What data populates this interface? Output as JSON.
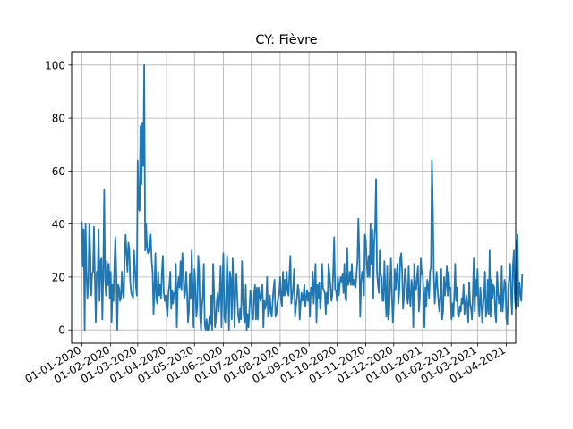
{
  "chart_data": {
    "type": "line",
    "title": "CY: Fièvre",
    "xlabel": "",
    "ylabel": "",
    "grid": true,
    "color": "#1f77b4",
    "x_tick_labels": [
      "01-01-2020",
      "01-02-2020",
      "01-03-2020",
      "01-04-2020",
      "01-05-2020",
      "01-06-2020",
      "01-07-2020",
      "01-08-2020",
      "01-09-2020",
      "01-10-2020",
      "01-11-2020",
      "01-12-2020",
      "01-01-2021",
      "01-02-2021",
      "01-03-2021",
      "01-04-2021"
    ],
    "y_ticks": [
      0,
      20,
      40,
      60,
      80,
      100
    ],
    "xlim": [
      "2019-12-21",
      "2021-04-11"
    ],
    "ylim": [
      -5,
      105
    ],
    "series": [
      {
        "x_start": "2020-01-01",
        "frequency": "daily",
        "values": [
          41,
          24,
          38,
          0,
          40,
          22,
          12,
          18,
          40,
          30,
          13,
          21,
          22,
          39,
          19,
          3,
          22,
          20,
          38,
          11,
          26,
          27,
          4,
          22,
          53,
          19,
          13,
          26,
          17,
          25,
          12,
          22,
          3,
          17,
          11,
          25,
          35,
          22,
          0,
          17,
          16,
          11,
          12,
          22,
          14,
          12,
          27,
          36,
          29,
          22,
          33,
          30,
          18,
          14,
          13,
          12,
          30,
          24,
          17,
          13,
          64,
          46,
          45,
          77,
          55,
          78,
          62,
          100,
          30,
          40,
          31,
          29,
          30,
          36,
          36,
          26,
          22,
          6,
          15,
          29,
          12,
          10,
          22,
          13,
          17,
          12,
          22,
          28,
          14,
          11,
          13,
          8,
          5,
          14,
          17,
          22,
          8,
          15,
          10,
          14,
          14,
          25,
          1,
          16,
          20,
          16,
          26,
          15,
          29,
          22,
          12,
          14,
          22,
          15,
          3,
          7,
          21,
          12,
          30,
          16,
          1,
          23,
          16,
          5,
          9,
          28,
          23,
          5,
          0,
          9,
          13,
          25,
          2,
          0,
          4,
          0,
          0,
          5,
          2,
          13,
          0,
          25,
          15,
          1,
          4,
          11,
          14,
          7,
          13,
          24,
          1,
          17,
          29,
          5,
          3,
          14,
          28,
          16,
          0,
          22,
          19,
          4,
          27,
          16,
          1,
          14,
          21,
          12,
          5,
          3,
          8,
          4,
          26,
          12,
          5,
          3,
          17,
          0,
          6,
          1,
          8,
          15,
          11,
          4,
          4,
          14,
          17,
          4,
          16,
          4,
          16,
          13,
          11,
          14,
          17,
          1,
          11,
          8,
          10,
          20,
          5,
          7,
          13,
          7,
          5,
          11,
          16,
          19,
          5,
          6,
          10,
          12,
          14,
          20,
          11,
          9,
          22,
          13,
          19,
          13,
          22,
          15,
          13,
          21,
          28,
          10,
          13,
          16,
          23,
          5,
          9,
          12,
          17,
          15,
          4,
          10,
          14,
          11,
          13,
          17,
          9,
          12,
          15,
          11,
          14,
          5,
          16,
          13,
          22,
          10,
          17,
          25,
          3,
          17,
          12,
          18,
          8,
          12,
          25,
          16,
          15,
          14,
          6,
          14,
          10,
          25,
          21,
          17,
          11,
          13,
          22,
          35,
          15,
          15,
          11,
          20,
          13,
          17,
          20,
          18,
          21,
          14,
          25,
          12,
          11,
          31,
          17,
          18,
          22,
          17,
          25,
          17,
          19,
          17,
          16,
          21,
          26,
          42,
          29,
          5,
          18,
          22,
          20,
          13,
          36,
          34,
          25,
          20,
          28,
          20,
          40,
          25,
          38,
          12,
          33,
          39,
          57,
          22,
          17,
          14,
          30,
          21,
          20,
          11,
          11,
          26,
          15,
          5,
          24,
          4,
          6,
          15,
          27,
          14,
          3,
          10,
          23,
          15,
          21,
          25,
          10,
          15,
          27,
          29,
          22,
          8,
          13,
          23,
          20,
          13,
          10,
          24,
          12,
          9,
          19,
          16,
          1,
          25,
          17,
          15,
          20,
          24,
          7,
          12,
          27,
          21,
          22,
          14,
          1,
          16,
          9,
          19,
          17,
          12,
          22,
          24,
          64,
          46,
          21,
          10,
          16,
          22,
          16,
          11,
          7,
          13,
          23,
          4,
          7,
          20,
          13,
          17,
          24,
          13,
          22,
          15,
          16,
          4,
          10,
          5,
          13,
          25,
          11,
          16,
          6,
          5,
          9,
          7,
          12,
          10,
          17,
          6,
          9,
          13,
          9,
          3,
          18,
          10,
          8,
          4,
          14,
          27,
          7,
          19,
          13,
          23,
          10,
          5,
          16,
          11,
          3,
          9,
          13,
          22,
          5,
          7,
          19,
          6,
          30,
          5,
          19,
          12,
          17,
          16,
          6,
          3,
          22,
          15,
          10,
          13,
          7,
          24,
          7,
          13,
          19,
          17,
          4,
          2,
          16,
          20,
          25,
          14,
          6,
          24,
          30,
          13,
          8,
          31,
          36,
          9,
          18,
          14,
          11,
          21
        ]
      }
    ]
  }
}
